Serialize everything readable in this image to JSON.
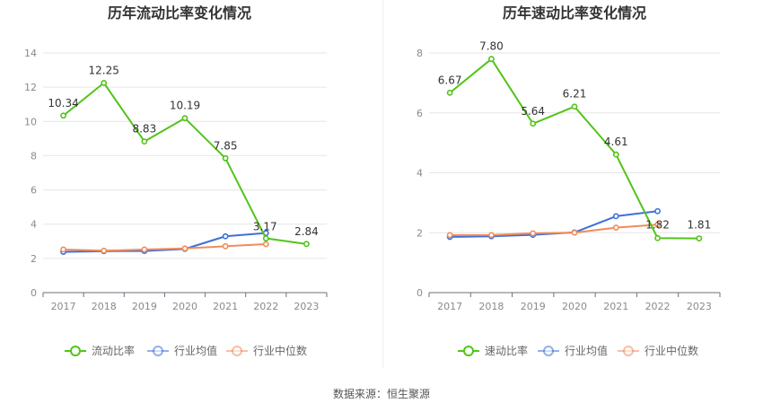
{
  "source": "数据来源：恒生聚源",
  "chart_data": [
    {
      "type": "line",
      "title": "历年流动比率变化情况",
      "categories": [
        "2017",
        "2018",
        "2019",
        "2020",
        "2021",
        "2022",
        "2023"
      ],
      "ylim": [
        0,
        14
      ],
      "yticks": [
        0,
        2,
        4,
        6,
        8,
        10,
        12,
        14
      ],
      "ytick_labels": [
        "0",
        "2",
        "4",
        "6",
        "8",
        "10",
        "12",
        "14"
      ],
      "grid": true,
      "legend_position": "bottom",
      "series": [
        {
          "name": "流动比率",
          "color": "#52c41a",
          "values": [
            10.34,
            12.25,
            8.83,
            10.19,
            7.85,
            3.17,
            2.84
          ],
          "labels": [
            "10.34",
            "12.25",
            "8.83",
            "10.19",
            "7.85",
            "3.17",
            "2.84"
          ]
        },
        {
          "name": "行业均值",
          "color": "#3e6fd8",
          "values": [
            2.38,
            2.42,
            2.43,
            2.55,
            3.29,
            3.48,
            null
          ]
        },
        {
          "name": "行业中位数",
          "color": "#f08c5a",
          "values": [
            2.52,
            2.45,
            2.52,
            2.58,
            2.71,
            2.83,
            null
          ]
        }
      ]
    },
    {
      "type": "line",
      "title": "历年速动比率变化情况",
      "categories": [
        "2017",
        "2018",
        "2019",
        "2020",
        "2021",
        "2022",
        "2023"
      ],
      "ylim": [
        0,
        8
      ],
      "yticks": [
        0,
        2,
        4,
        6,
        8
      ],
      "ytick_labels": [
        "0",
        "2",
        "4",
        "6",
        "8"
      ],
      "grid": true,
      "legend_position": "bottom",
      "series": [
        {
          "name": "速动比率",
          "color": "#52c41a",
          "values": [
            6.67,
            7.8,
            5.64,
            6.21,
            4.61,
            1.82,
            1.81
          ],
          "labels": [
            "6.67",
            "7.80",
            "5.64",
            "6.21",
            "4.61",
            "1.82",
            "1.81"
          ]
        },
        {
          "name": "行业均值",
          "color": "#3e6fd8",
          "values": [
            1.86,
            1.88,
            1.93,
            2.01,
            2.55,
            2.72,
            null
          ]
        },
        {
          "name": "行业中位数",
          "color": "#f08c5a",
          "values": [
            1.92,
            1.92,
            1.98,
            2.0,
            2.17,
            2.27,
            null
          ]
        }
      ]
    }
  ]
}
